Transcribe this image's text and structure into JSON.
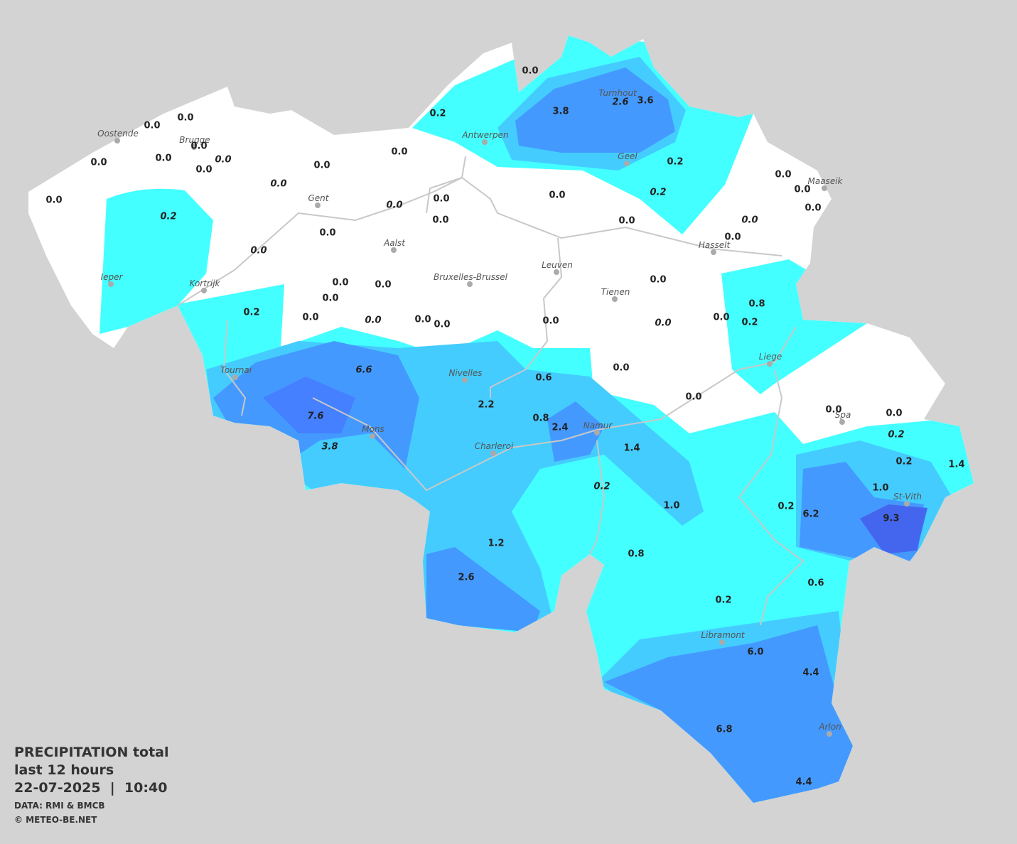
{
  "legend": {
    "title": "PRECIPITATION total",
    "subtitle": "last 12 hours",
    "timestamp": "22-07-2025  |  10:40",
    "source": "DATA: RMI & BMCB",
    "credit": "© METEO-BE.NET"
  },
  "cities": [
    "Oostende",
    "Brugge",
    "Antwerpen",
    "Turnhout",
    "Geel",
    "Maaseik",
    "Gent",
    "Hasselt",
    "Aalst",
    "Leuven",
    "Ieper",
    "Kortrijk",
    "Bruxelles-Brussel",
    "Tienen",
    "Liege",
    "Tournai",
    "Nivelles",
    "Spa",
    "Namur",
    "Mons",
    "Charleroi",
    "St-Vith",
    "Libramont",
    "Arlon"
  ],
  "readings": [
    "0.0",
    "0.2",
    "3.8",
    "2.6",
    "3.6",
    "0.0",
    "0.0",
    "0.0",
    "0.0",
    "0.0",
    "0.0",
    "0.0",
    "0.0",
    "0.0",
    "0.2",
    "0.0",
    "0.0",
    "0.0",
    "0.0",
    "0.0",
    "0.2",
    "0.0",
    "0.0",
    "0.0",
    "0.2",
    "0.0",
    "0.0",
    "0.0",
    "0.0",
    "0.0",
    "0.0",
    "0.0",
    "0.0",
    "0.0",
    "0.0",
    "0.8",
    "0.2",
    "0.0",
    "0.0",
    "0.0",
    "0.0",
    "0.0",
    "0.0",
    "0.0",
    "0.2",
    "6.6",
    "0.6",
    "0.0",
    "2.2",
    "0.0",
    "0.0",
    "0.0",
    "7.6",
    "0.8",
    "2.4",
    "0.2",
    "3.8",
    "1.4",
    "0.2",
    "1.4",
    "0.2",
    "1.0",
    "1.0",
    "0.2",
    "6.2",
    "9.3",
    "1.2",
    "0.8",
    "2.6",
    "0.6",
    "0.2",
    "6.0",
    "4.4",
    "6.8",
    "4.4"
  ]
}
